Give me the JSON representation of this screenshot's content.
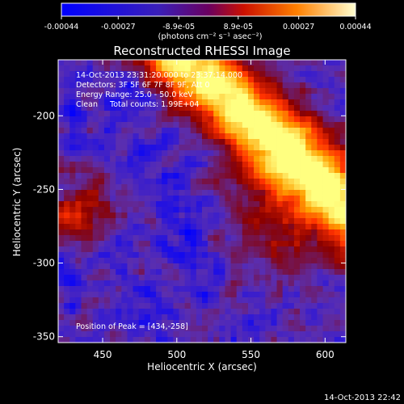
{
  "chart_data": {
    "type": "heatmap",
    "title": "Reconstructed RHESSI Image",
    "xlabel": "Heliocentric X (arcsec)",
    "ylabel": "Heliocentric Y (arcsec)",
    "xlim": [
      420,
      614
    ],
    "ylim": [
      -354,
      -162
    ],
    "x_ticks": [
      450,
      500,
      550,
      600
    ],
    "y_ticks": [
      -200,
      -250,
      -300,
      -350
    ],
    "colorbar": {
      "label": "(photons cm⁻² s⁻¹ asec⁻²)",
      "range": [
        -0.00044,
        0.00044
      ],
      "ticks": [
        "-0.00044",
        "-0.00027",
        "-8.9e-05",
        "8.9e-05",
        "0.00027",
        "0.00044"
      ],
      "ticks_values": [
        -0.00044,
        -0.00027,
        -8.9e-05,
        8.9e-05,
        0.00027,
        0.00044
      ]
    },
    "info_lines": [
      "14-Oct-2013 23:31:20.000 to 23:37:14.000",
      "Detectors: 3F 5F 6F 7F 8F 9F, Att 0",
      "Energy Range: 25.0 - 50.0 keV",
      "Clean     Total counts: 1.99E+04"
    ],
    "peak_label": "Position of Peak = [434,-258]",
    "peak_position": [
      434,
      -258
    ],
    "timestamp": "14-Oct-2013 22:42",
    "colormap": [
      "#0000ff",
      "#5a2eb0",
      "#8a0000",
      "#ff3000",
      "#ffa000",
      "#ffff80"
    ]
  }
}
